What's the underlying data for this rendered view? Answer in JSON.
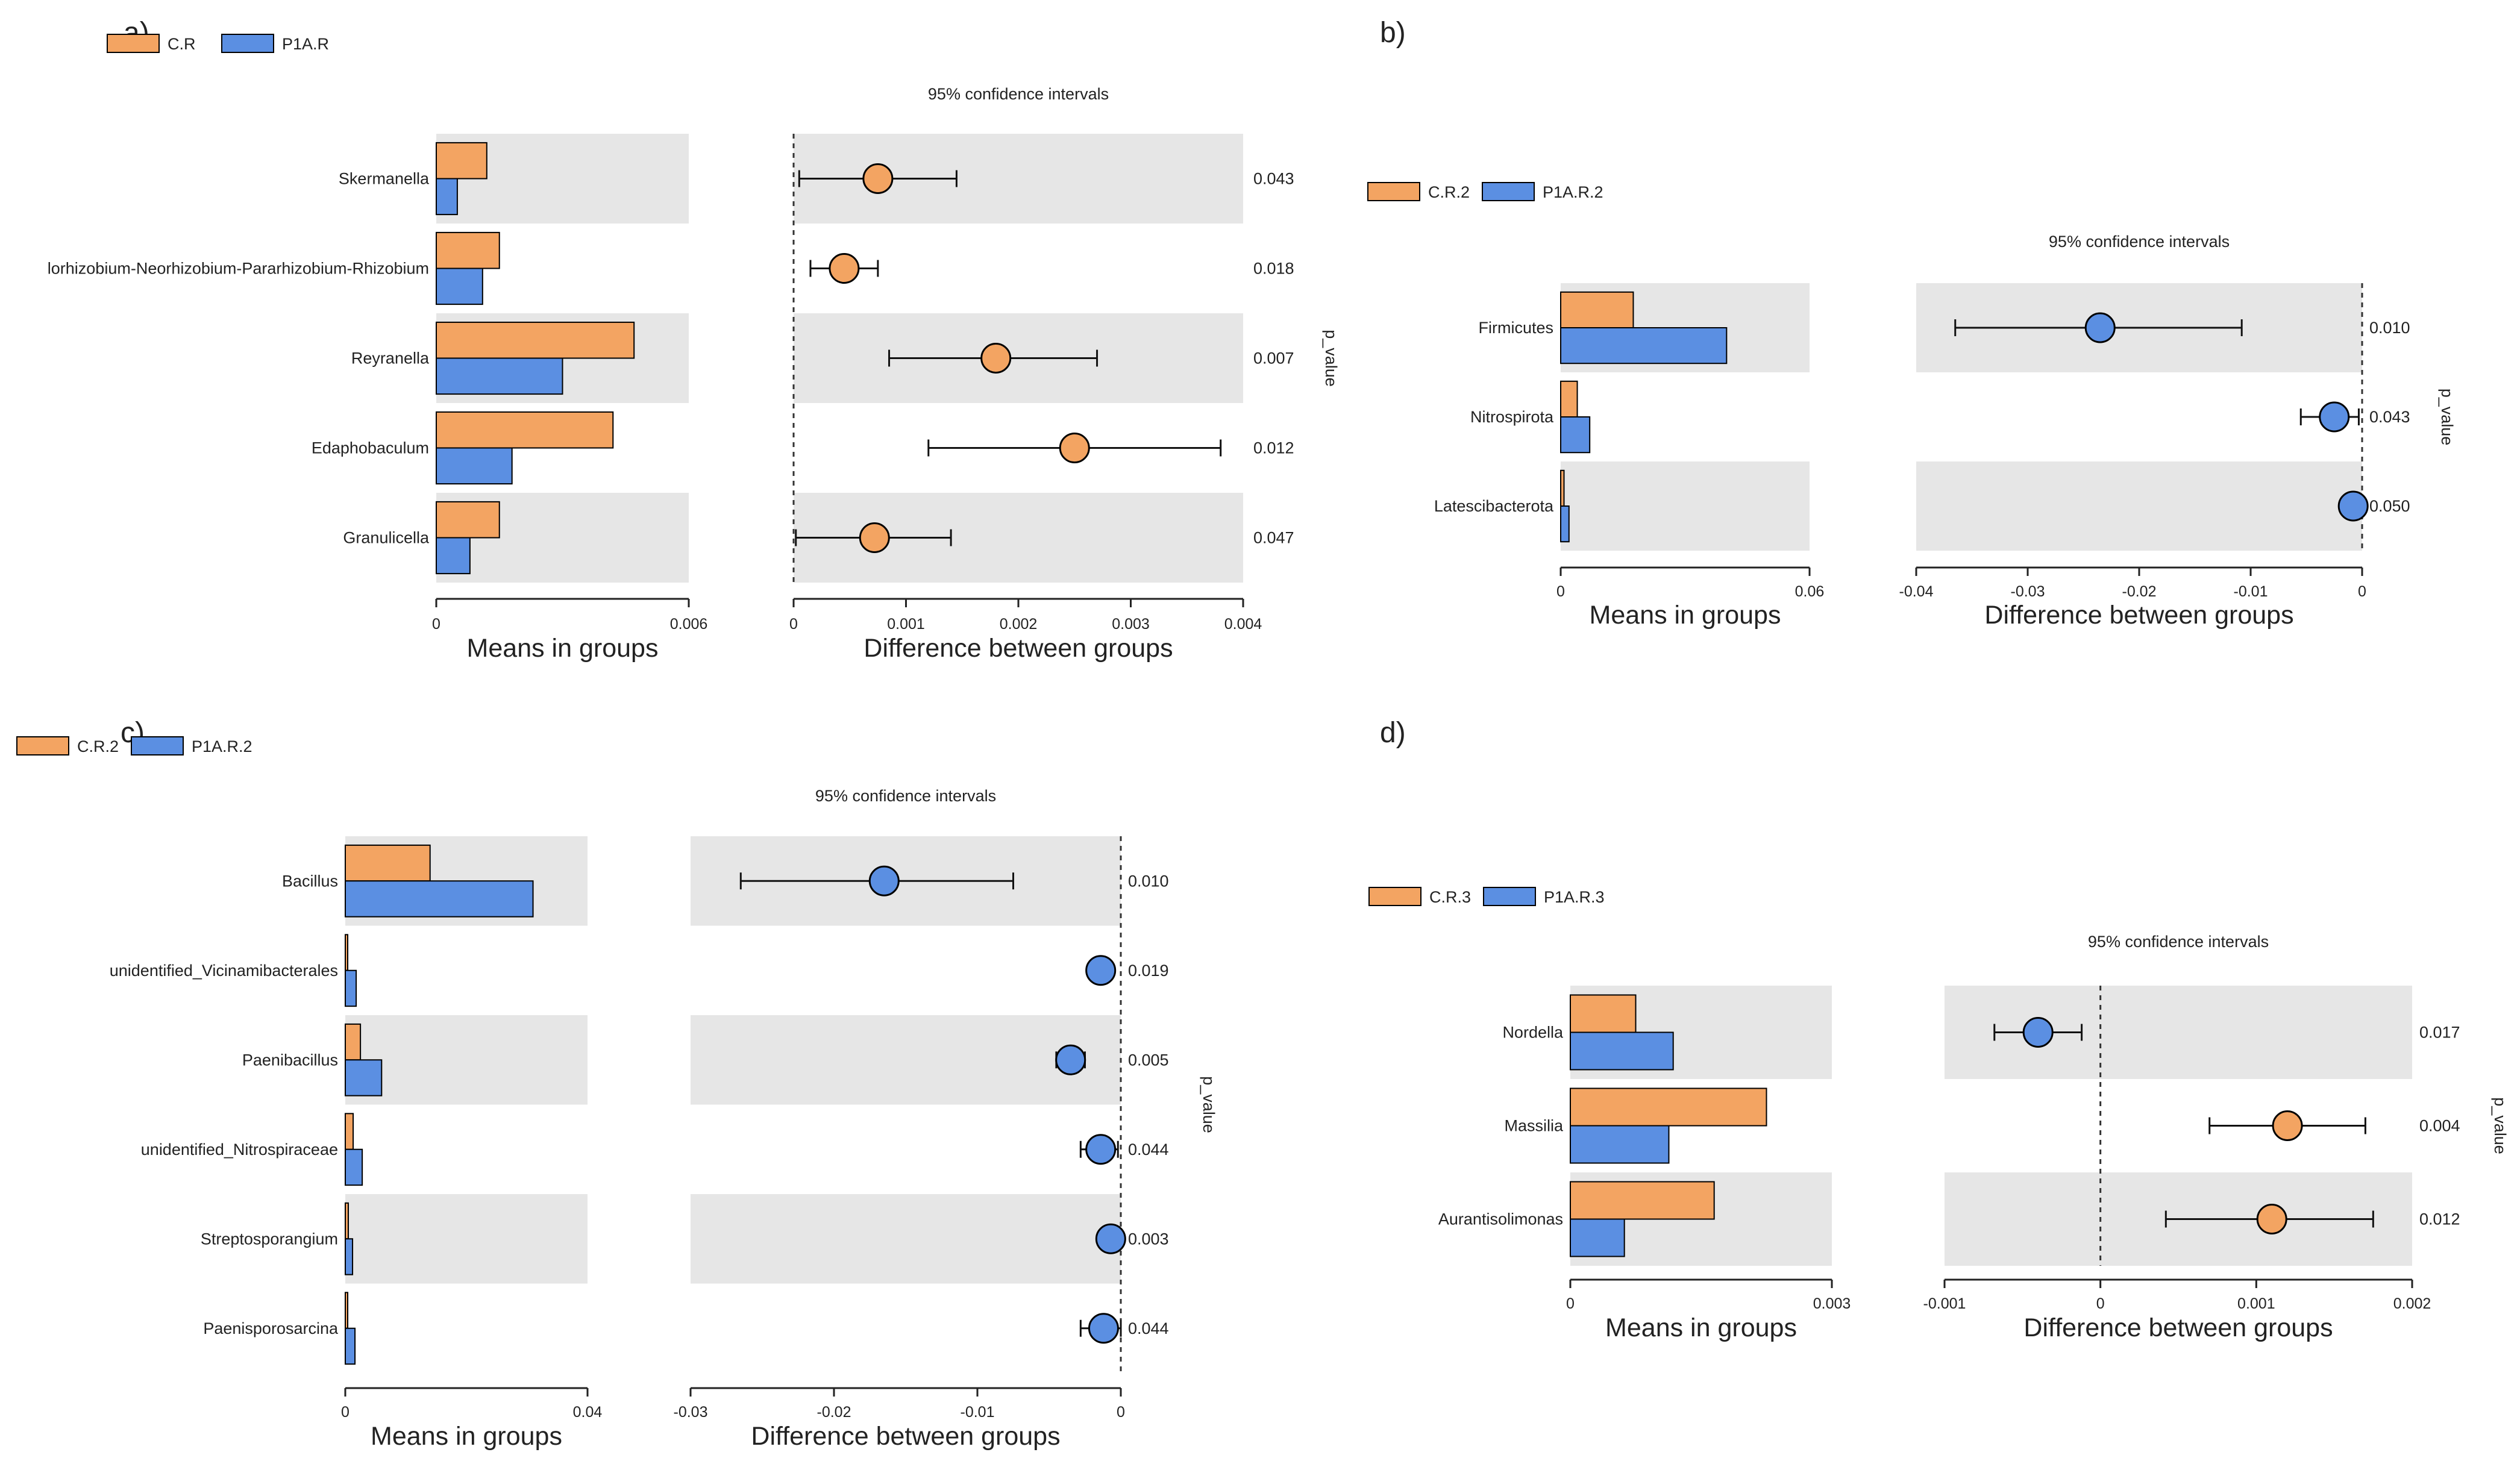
{
  "colors": {
    "orange": "#F3A462",
    "blue": "#5B8FE2",
    "band": "#E6E6E6",
    "axis": "#222222"
  },
  "common": {
    "ci_title": "95% confidence intervals",
    "means_xlabel": "Means in groups",
    "diff_xlabel": "Difference between groups",
    "pvalue_label": "p_value"
  },
  "chart_data": [
    {
      "type": "bar",
      "panel": "a)",
      "legend": [
        "C.R",
        "P1A.R"
      ],
      "categories": [
        "Skermanella",
        "lorhizobium-Neorhizobium-Pararhizobium-Rhizobium",
        "Reyranella",
        "Edaphobaculum",
        "Granulicella"
      ],
      "series": [
        {
          "name": "C.R",
          "values": [
            0.0012,
            0.0015,
            0.0047,
            0.0042,
            0.0015
          ]
        },
        {
          "name": "P1A.R",
          "values": [
            0.0005,
            0.0011,
            0.003,
            0.0018,
            0.0008
          ]
        }
      ],
      "means_xlim": [
        0,
        0.006
      ],
      "means_ticks": [
        0,
        0.006
      ],
      "diff": [
        0.00075,
        0.00045,
        0.0018,
        0.0025,
        0.00072
      ],
      "ci_low": [
        5e-05,
        0.00015,
        0.00085,
        0.0012,
        2e-05
      ],
      "ci_high": [
        0.00145,
        0.00075,
        0.0027,
        0.0038,
        0.0014
      ],
      "diff_colors": [
        "orange",
        "orange",
        "orange",
        "orange",
        "orange"
      ],
      "diff_xlim": [
        0,
        0.004
      ],
      "diff_ticks": [
        0,
        0.001,
        0.002,
        0.003,
        0.004
      ],
      "diff_tick_labels": [
        "0",
        "0.001",
        "0.002",
        "0.003",
        "0.004"
      ],
      "pvalues": [
        "0.043",
        "0.018",
        "0.007",
        "0.012",
        "0.047"
      ]
    },
    {
      "type": "bar",
      "panel": "b)",
      "legend": [
        "C.R.2",
        "P1A.R.2"
      ],
      "categories": [
        "Firmicutes",
        "Nitrospirota",
        "Latescibacterota"
      ],
      "series": [
        {
          "name": "C.R.2",
          "values": [
            0.0175,
            0.004,
            0.0008
          ]
        },
        {
          "name": "P1A.R.2",
          "values": [
            0.04,
            0.007,
            0.002
          ]
        }
      ],
      "means_xlim": [
        0,
        0.06
      ],
      "means_ticks": [
        0,
        0.06
      ],
      "diff": [
        -0.0235,
        -0.0025,
        -0.0008
      ],
      "ci_low": [
        -0.0365,
        -0.0055,
        -0.0012
      ],
      "ci_high": [
        -0.0108,
        -0.0003,
        -0.0003
      ],
      "diff_colors": [
        "blue",
        "blue",
        "blue"
      ],
      "diff_xlim": [
        -0.04,
        0
      ],
      "diff_ticks": [
        -0.04,
        -0.03,
        -0.02,
        -0.01,
        0
      ],
      "diff_tick_labels": [
        "-0.04",
        "-0.03",
        "-0.02",
        "-0.01",
        "0"
      ],
      "pvalues": [
        "0.010",
        "0.043",
        "0.050"
      ]
    },
    {
      "type": "bar",
      "panel": "c)",
      "legend": [
        "C.R.2",
        "P1A.R.2"
      ],
      "categories": [
        "Bacillus",
        "unidentified_Vicinamibacterales",
        "Paenibacillus",
        "unidentified_Nitrospiraceae",
        "Streptosporangium",
        "Paenisporosarcina"
      ],
      "series": [
        {
          "name": "C.R.2",
          "values": [
            0.014,
            0.0004,
            0.0025,
            0.0013,
            0.0005,
            0.0004
          ]
        },
        {
          "name": "P1A.R.2",
          "values": [
            0.031,
            0.0018,
            0.006,
            0.0028,
            0.0012,
            0.0016
          ]
        }
      ],
      "means_xlim": [
        0,
        0.04
      ],
      "means_ticks": [
        0,
        0.04
      ],
      "diff": [
        -0.0165,
        -0.0014,
        -0.0035,
        -0.0014,
        -0.0007,
        -0.0012
      ],
      "ci_low": [
        -0.0265,
        -0.0018,
        -0.0045,
        -0.0028,
        -0.0012,
        -0.0028
      ],
      "ci_high": [
        -0.0075,
        -0.001,
        -0.0025,
        -0.0002,
        -0.0001,
        0
      ],
      "diff_colors": [
        "blue",
        "blue",
        "blue",
        "blue",
        "blue",
        "blue"
      ],
      "diff_xlim": [
        -0.03,
        0
      ],
      "diff_ticks": [
        -0.03,
        -0.02,
        -0.01,
        0
      ],
      "diff_tick_labels": [
        "-0.03",
        "-0.02",
        "-0.01",
        "0"
      ],
      "pvalues": [
        "0.010",
        "0.019",
        "0.005",
        "0.044",
        "0.003",
        "0.044"
      ]
    },
    {
      "type": "bar",
      "panel": "d)",
      "legend": [
        "C.R.3",
        "P1A.R.3"
      ],
      "categories": [
        "Nordella",
        "Massilia",
        "Aurantisolimonas"
      ],
      "series": [
        {
          "name": "C.R.3",
          "values": [
            0.00075,
            0.00225,
            0.00165
          ]
        },
        {
          "name": "P1A.R.3",
          "values": [
            0.00118,
            0.00113,
            0.00062
          ]
        }
      ],
      "means_xlim": [
        0,
        0.003
      ],
      "means_ticks": [
        0,
        0.003
      ],
      "diff": [
        -0.0004,
        0.0012,
        0.0011
      ],
      "ci_low": [
        -0.00068,
        0.0007,
        0.00042
      ],
      "ci_high": [
        -0.00012,
        0.0017,
        0.00175
      ],
      "diff_colors": [
        "blue",
        "orange",
        "orange"
      ],
      "diff_xlim": [
        -0.001,
        0.002
      ],
      "diff_ticks": [
        -0.001,
        0,
        0.001,
        0.002
      ],
      "diff_tick_labels": [
        "-0.001",
        "0",
        "0.001",
        "0.002"
      ],
      "pvalues": [
        "0.017",
        "0.004",
        "0.012"
      ]
    }
  ]
}
